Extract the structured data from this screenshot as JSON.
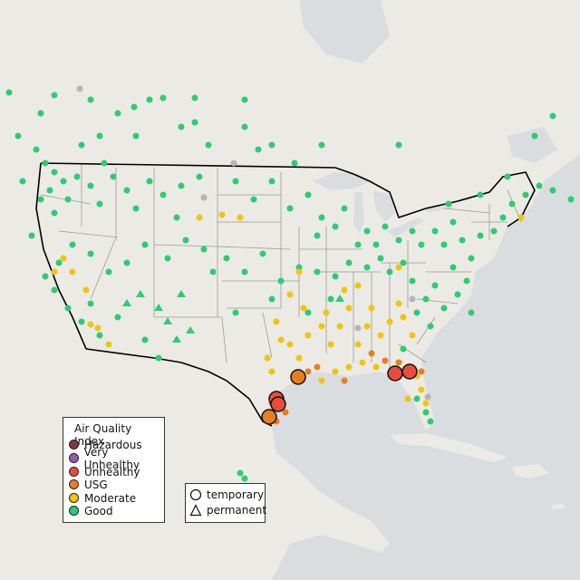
{
  "legend": {
    "title": "Air Quality Index",
    "categories": [
      {
        "label": "Hazardous",
        "color": "#7e3a3a"
      },
      {
        "label": "Very Unhealthy",
        "color": "#9b59b6"
      },
      {
        "label": "Unhealthy",
        "color": "#e74c3c"
      },
      {
        "label": "USG",
        "color": "#e67e22"
      },
      {
        "label": "Moderate",
        "color": "#f1c40f"
      },
      {
        "label": "Good",
        "color": "#2ecc71"
      }
    ]
  },
  "type_legend": {
    "items": [
      {
        "label": "temporary",
        "shape": "circle"
      },
      {
        "label": "permanent",
        "shape": "triangle"
      }
    ]
  },
  "colors": {
    "land": "#eceae5",
    "water": "#d9dde0",
    "border": "#000000",
    "state_line": "#9a9a9a",
    "no_data": "#b5b5b5"
  }
}
